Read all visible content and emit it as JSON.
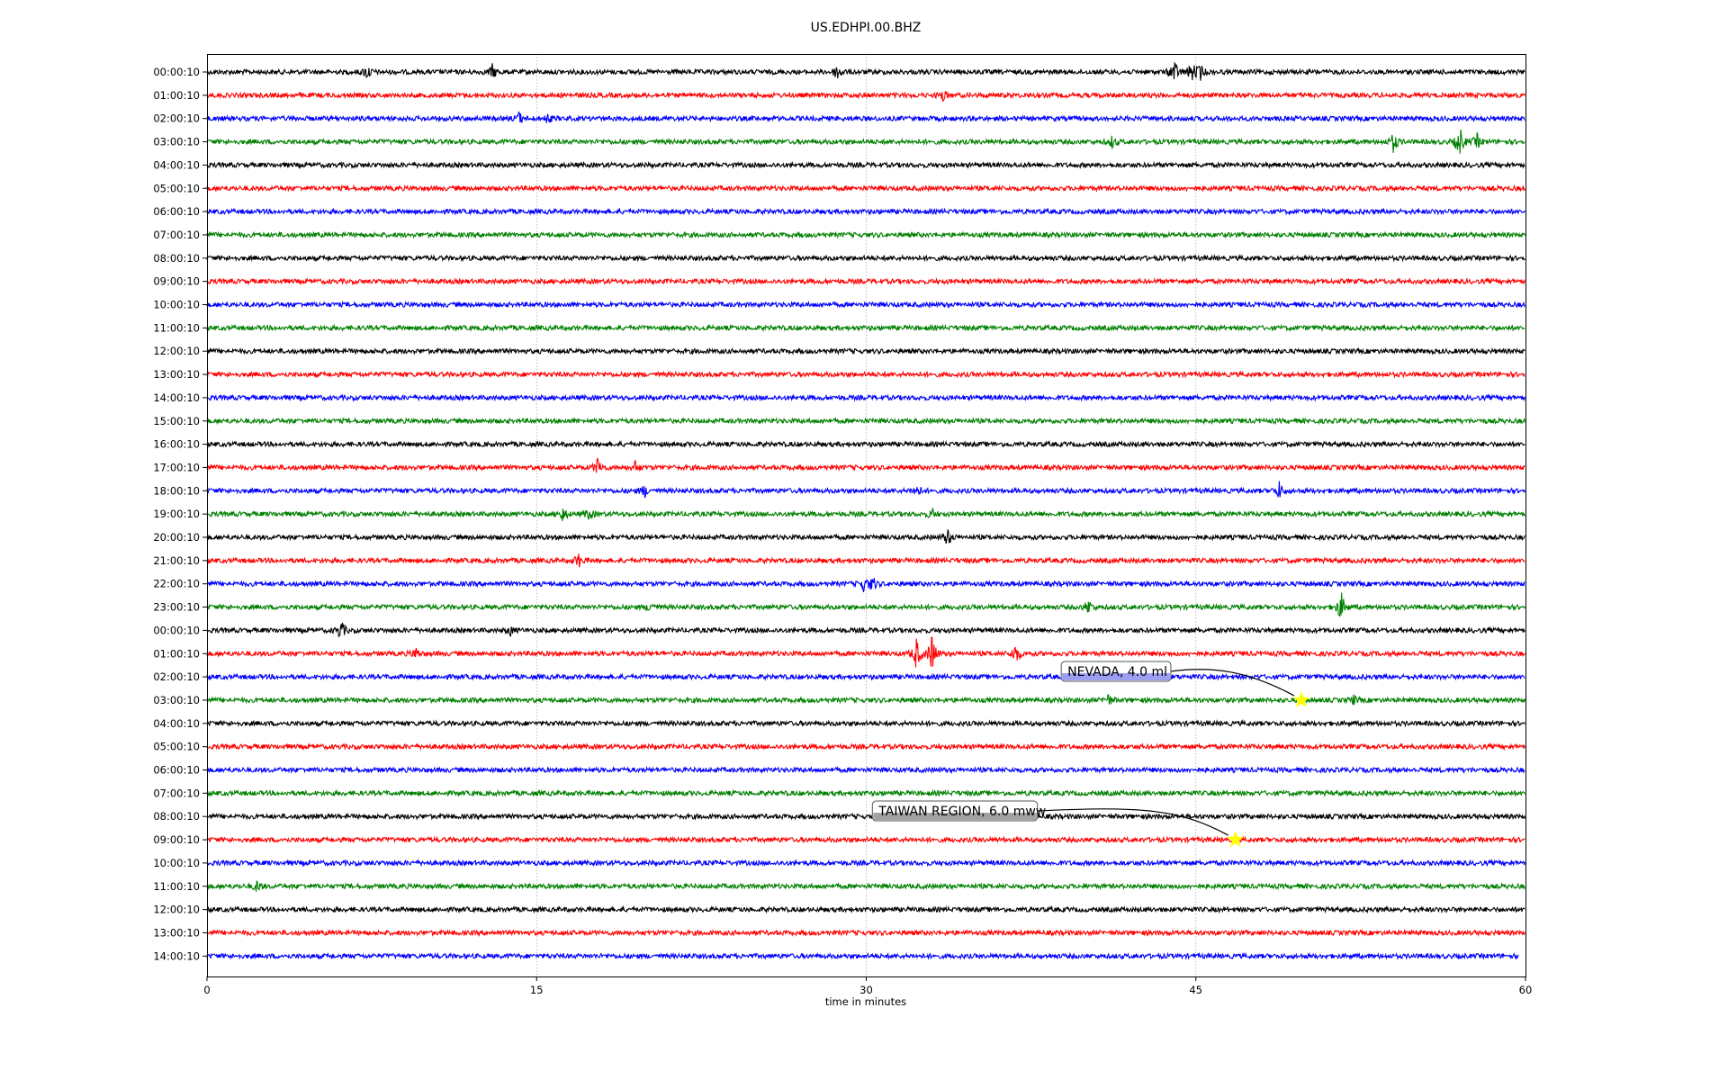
{
  "chart_data": {
    "type": "line",
    "title": "US.EDHPI.00.BHZ",
    "xlabel": "time in minutes",
    "ylabel": "",
    "xlim": [
      0,
      60
    ],
    "xticks": [
      "0",
      "15",
      "30",
      "45",
      "60"
    ],
    "xtick_values": [
      0,
      15,
      30,
      45,
      60
    ],
    "grid": "vertical dotted at x ticks",
    "colors": [
      "#000000",
      "#ff0000",
      "#0000ff",
      "#008000"
    ],
    "yticks": [
      "00:00:10",
      "01:00:10",
      "02:00:10",
      "03:00:10",
      "04:00:10",
      "05:00:10",
      "06:00:10",
      "07:00:10",
      "08:00:10",
      "09:00:10",
      "10:00:10",
      "11:00:10",
      "12:00:10",
      "13:00:10",
      "14:00:10",
      "15:00:10",
      "16:00:10",
      "17:00:10",
      "18:00:10",
      "19:00:10",
      "20:00:10",
      "21:00:10",
      "22:00:10",
      "23:00:10",
      "00:00:10",
      "01:00:10",
      "02:00:10",
      "03:00:10",
      "04:00:10",
      "05:00:10",
      "06:00:10",
      "07:00:10",
      "08:00:10",
      "09:00:10",
      "10:00:10",
      "11:00:10",
      "12:00:10",
      "13:00:10",
      "14:00:10"
    ],
    "last_trace_end_minute": 59.7,
    "bursts": [
      {
        "row": 0,
        "minute": 7.3,
        "amp": 5
      },
      {
        "row": 0,
        "minute": 13.0,
        "amp": 5
      },
      {
        "row": 0,
        "minute": 28.7,
        "amp": 6
      },
      {
        "row": 0,
        "minute": 44.0,
        "amp": 9
      },
      {
        "row": 0,
        "minute": 44.8,
        "amp": 7
      },
      {
        "row": 0,
        "minute": 45.2,
        "amp": 5
      },
      {
        "row": 1,
        "minute": 33.5,
        "amp": 4
      },
      {
        "row": 2,
        "minute": 14.2,
        "amp": 4
      },
      {
        "row": 2,
        "minute": 15.5,
        "amp": 3
      },
      {
        "row": 3,
        "minute": 41.2,
        "amp": 4
      },
      {
        "row": 3,
        "minute": 54.0,
        "amp": 7
      },
      {
        "row": 3,
        "minute": 57.0,
        "amp": 11
      },
      {
        "row": 3,
        "minute": 57.8,
        "amp": 5
      },
      {
        "row": 17,
        "minute": 17.8,
        "amp": 7
      },
      {
        "row": 17,
        "minute": 19.5,
        "amp": 4
      },
      {
        "row": 18,
        "minute": 19.9,
        "amp": 4
      },
      {
        "row": 18,
        "minute": 32.3,
        "amp": 5
      },
      {
        "row": 18,
        "minute": 48.8,
        "amp": 6
      },
      {
        "row": 19,
        "minute": 16.2,
        "amp": 5
      },
      {
        "row": 19,
        "minute": 17.4,
        "amp": 4
      },
      {
        "row": 19,
        "minute": 33.0,
        "amp": 3
      },
      {
        "row": 20,
        "minute": 33.7,
        "amp": 6
      },
      {
        "row": 21,
        "minute": 16.9,
        "amp": 5
      },
      {
        "row": 22,
        "minute": 29.9,
        "amp": 5
      },
      {
        "row": 22,
        "minute": 30.3,
        "amp": 5
      },
      {
        "row": 23,
        "minute": 20.2,
        "amp": 4
      },
      {
        "row": 23,
        "minute": 40.1,
        "amp": 5
      },
      {
        "row": 23,
        "minute": 51.6,
        "amp": 11
      },
      {
        "row": 24,
        "minute": 6.1,
        "amp": 7
      },
      {
        "row": 24,
        "minute": 13.8,
        "amp": 3
      },
      {
        "row": 25,
        "minute": 9.5,
        "amp": 4
      },
      {
        "row": 25,
        "minute": 32.3,
        "amp": 12
      },
      {
        "row": 25,
        "minute": 33.0,
        "amp": 14
      },
      {
        "row": 25,
        "minute": 36.8,
        "amp": 7
      },
      {
        "row": 27,
        "minute": 41.0,
        "amp": 4
      },
      {
        "row": 27,
        "minute": 52.2,
        "amp": 3
      },
      {
        "row": 35,
        "minute": 2.3,
        "amp": 4
      }
    ],
    "events": [
      {
        "label": "NEVADA, 4.0 ml",
        "row": 27,
        "minute": 49.8,
        "box_color": "#8c8cf0"
      },
      {
        "label": "TAIWAN REGION, 6.0 mww",
        "row": 33,
        "minute": 46.8,
        "box_color": "#909090"
      }
    ],
    "marker_color": "#ffff00"
  }
}
